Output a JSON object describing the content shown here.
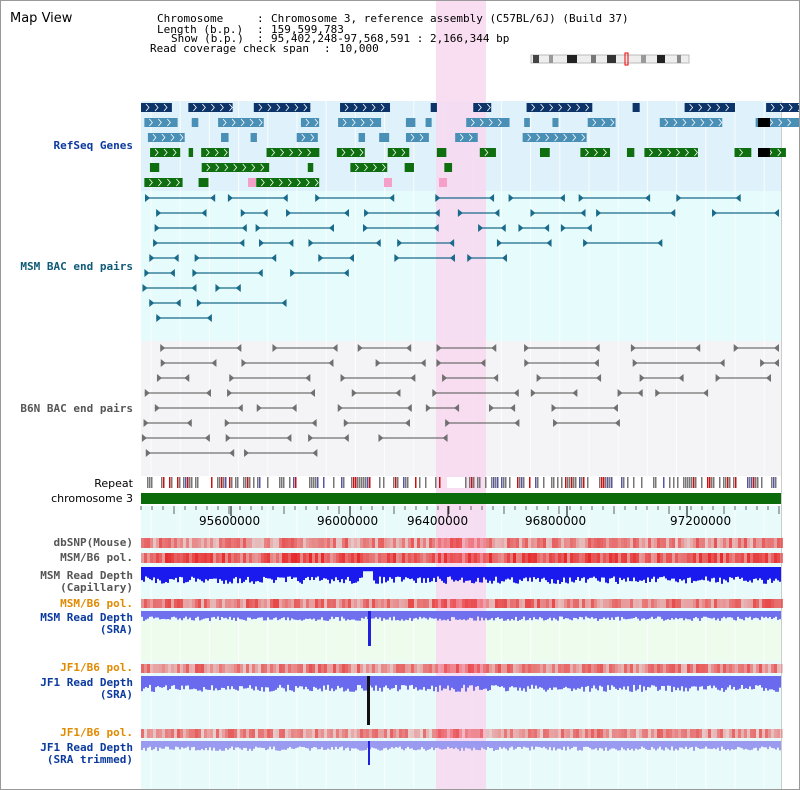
{
  "title": "Map View",
  "header": {
    "chromosome_label": "Chromosome",
    "chromosome_value": "Chromosome 3, reference assembly (C57BL/6J) (Build 37)",
    "length_label": "Length (b.p.)",
    "length_value": "159,599,783",
    "show_label": "Show (b.p.)",
    "show_value": "95,402,248-97,568,591 : 2,166,344 bp",
    "coverage_label": "Read coverage check span",
    "coverage_value": "10,000"
  },
  "tracks": {
    "refseq": "RefSeq Genes",
    "msm_bac": "MSM BAC end pairs",
    "b6n_bac": "B6N BAC end pairs",
    "repeat": "Repeat",
    "chromosome": "chromosome 3",
    "dbsnp": "dbSNP(Mouse)",
    "msm_b6_pol_1": "MSM/B6 pol.",
    "msm_rd_cap_1": "MSM Read Depth",
    "msm_rd_cap_2": "(Capillary)",
    "msm_b6_pol_2": "MSM/B6 pol.",
    "msm_rd_sra_1": "MSM Read Depth",
    "msm_rd_sra_2": "(SRA)",
    "jf1_b6_pol_1": "JF1/B6 pol.",
    "jf1_rd_sra_1": "JF1 Read Depth",
    "jf1_rd_sra_2": "(SRA)",
    "jf1_b6_pol_2": "JF1/B6 pol.",
    "jf1_rd_trim_1": "JF1 Read Depth",
    "jf1_rd_trim_2": "(SRA trimmed)"
  },
  "axis": {
    "ticks": [
      "95600000",
      "96000000",
      "96400000",
      "96800000",
      "97200000"
    ]
  },
  "colors": {
    "refseq_bg": "#dff2fb",
    "msm_bg": "#e6fbfb",
    "b6n_bg": "#f4f4f6",
    "highlight": "#f8d8f0",
    "dark_gene": "#0d3469",
    "mid_gene": "#4a8fb5",
    "green_gene": "#0f6e0f",
    "bac_blue": "#1a6a8a",
    "bac_gray": "#707070",
    "chrom_green": "#0b6b0b",
    "label_blue": "#0b3a9e",
    "label_teal": "#0f5a78",
    "label_orange": "#e08a00"
  }
}
